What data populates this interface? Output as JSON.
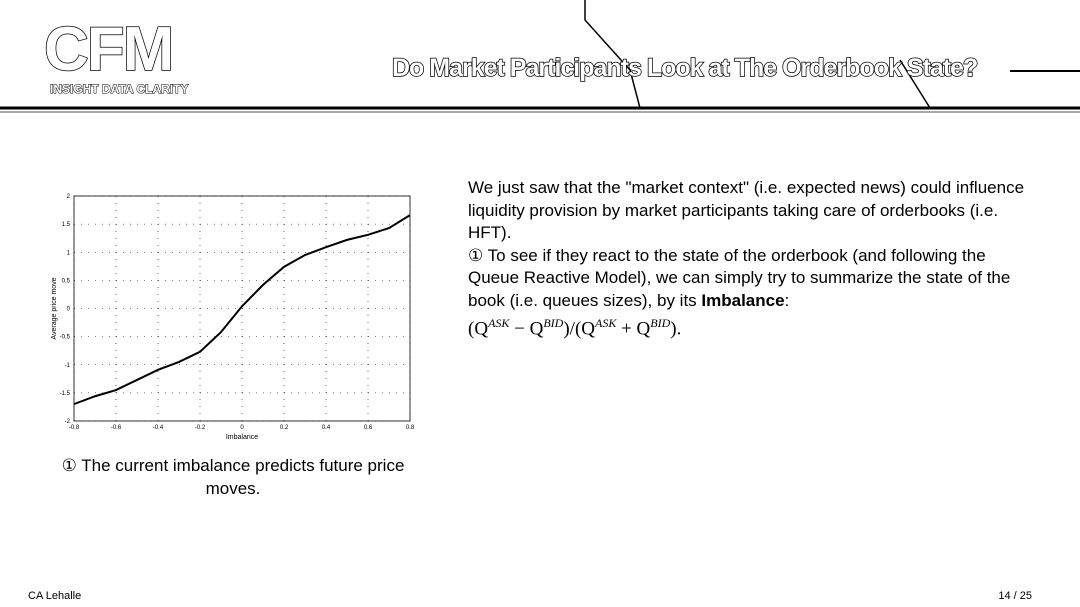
{
  "header": {
    "logo": "CFM",
    "logo_tagline": "INSIGHT DATA CLARITY",
    "title": "Do Market Participants Look at The Orderbook State?"
  },
  "chart_data": {
    "type": "line",
    "x_label": "Imbalance",
    "y_label": "Average price move",
    "x": [
      -0.8,
      -0.7,
      -0.6,
      -0.5,
      -0.4,
      -0.3,
      -0.2,
      -0.1,
      0,
      0.1,
      0.2,
      0.3,
      0.4,
      0.5,
      0.6,
      0.7,
      0.8
    ],
    "series": [
      {
        "color": "#000000",
        "values": [
          -1.7,
          -1.56,
          -1.45,
          -1.27,
          -1.09,
          -0.95,
          -0.77,
          -0.42,
          0.04,
          0.42,
          0.74,
          0.95,
          1.09,
          1.22,
          1.31,
          1.43,
          1.66
        ]
      }
    ],
    "xlim": [
      -0.8,
      0.8
    ],
    "xticks": [
      -0.8,
      -0.6,
      -0.4,
      -0.2,
      0,
      0.2,
      0.4,
      0.6,
      0.8
    ],
    "ylim": [
      -2,
      2
    ],
    "yticks": [
      -2,
      -1.5,
      -1,
      -0.5,
      0,
      0.5,
      1,
      1.5,
      2
    ],
    "grid": true
  },
  "caption": "① The current imbalance predicts future price moves.",
  "body": {
    "paragraph_1": "We just saw that the \"market context\" (i.e. expected news) could influence liquidity provision by market participants taking care of orderbooks (i.e. HFT).",
    "paragraph_2": "① To see if they react to the state of the orderbook (and following the Queue Reactive Model), we can simply try to summarize the state of the book (i.e. queues sizes), by its ",
    "paragraph_2_bold": "Imbalance",
    "paragraph_2_end": ":",
    "formula_parts": [
      "(Q",
      "ASK",
      " − Q",
      "BID",
      ")/(Q",
      "ASK",
      " + Q",
      "BID",
      ")."
    ]
  },
  "footer": {
    "author": "CA Lehalle",
    "page": "14 / 25"
  }
}
